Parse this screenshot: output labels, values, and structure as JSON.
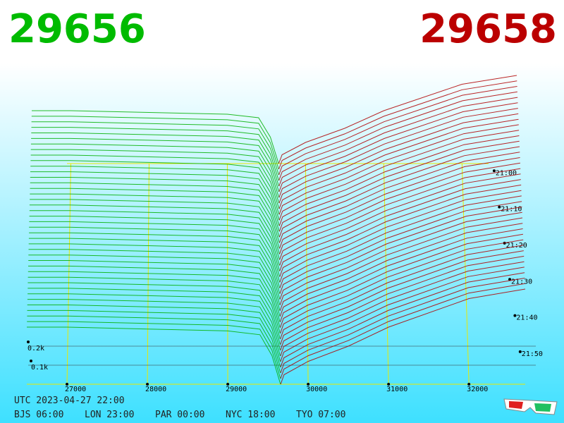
{
  "best_bid": 29656,
  "best_ask": 29658,
  "footer": {
    "utc": "UTC 2023-04-27 22:00",
    "clocks": [
      "BJS 06:00",
      "LON 23:00",
      "PAR 00:00",
      "NYC 18:00",
      "TYO 07:00"
    ]
  },
  "chart_data": {
    "type": "depth3d",
    "xlim": [
      26500,
      32700
    ],
    "xticks": [
      27000,
      28000,
      29000,
      30000,
      31000,
      32000
    ],
    "yticks": [
      {
        "value": 0.1,
        "label": "0.1k"
      },
      {
        "value": 0.2,
        "label": "0.2k"
      }
    ],
    "time_ticks": [
      "21:00",
      "21:10",
      "21:20",
      "21:30",
      "21:40",
      "21:50"
    ],
    "series": [
      {
        "color": "#00b000",
        "x": [
          26500,
          27000,
          28000,
          29000,
          29400,
          29550,
          29656
        ],
        "values": [
          0.3,
          0.3,
          0.29,
          0.28,
          0.26,
          0.15,
          0
        ]
      },
      {
        "color": "#b00000",
        "x": [
          29658,
          29700,
          30000,
          30500,
          31000,
          32000,
          32700
        ],
        "values": [
          0,
          0.05,
          0.12,
          0.2,
          0.3,
          0.45,
          0.5
        ]
      }
    ]
  }
}
